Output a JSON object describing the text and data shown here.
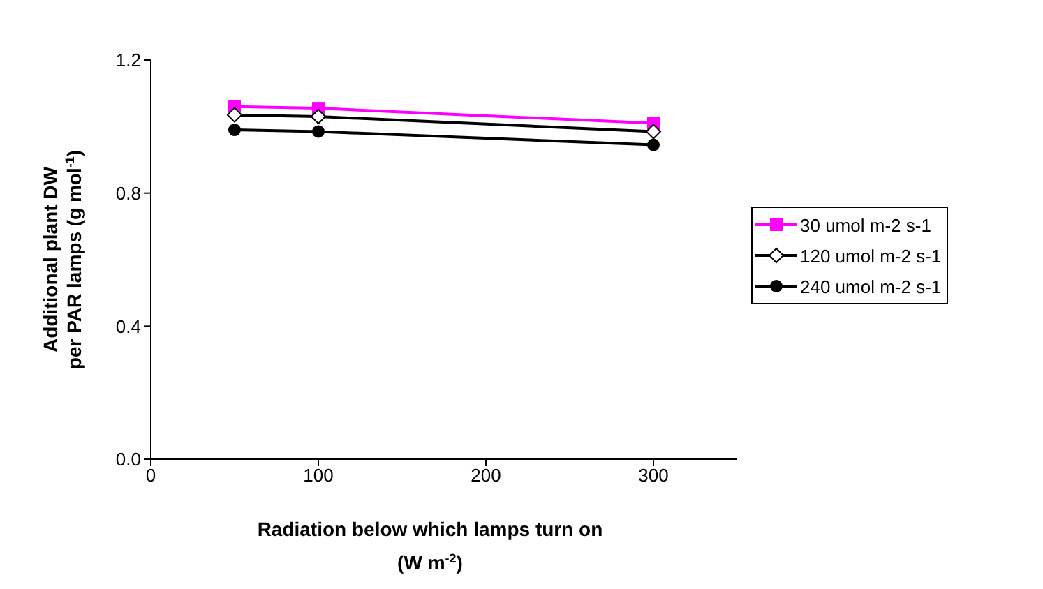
{
  "chart_data": {
    "type": "line",
    "xlabel": "Radiation below which lamps turn on (W m$^{-2}$)",
    "ylabel": "Additional plant DW per PAR lamps (g mol$^{-1}$)",
    "x": [
      50,
      100,
      300
    ],
    "series": [
      {
        "name": "30 umol m-2 s-1",
        "color": "#ff00ff",
        "marker": "square",
        "values": [
          1.06,
          1.055,
          1.01
        ]
      },
      {
        "name": "120 umol m-2 s-1",
        "color": "#000000",
        "marker": "diamond",
        "values": [
          1.035,
          1.03,
          0.985
        ]
      },
      {
        "name": "240 umol m-2 s-1",
        "color": "#000000",
        "marker": "circle",
        "values": [
          0.99,
          0.985,
          0.945
        ]
      }
    ],
    "xlim": [
      0,
      350
    ],
    "xticks": [
      0,
      100,
      200,
      300
    ],
    "ylim": [
      0,
      1.2
    ],
    "yticks": [
      {
        "value": 0,
        "label": "0.0"
      },
      {
        "value": 0.4,
        "label": "0.4"
      },
      {
        "value": 0.8,
        "label": "0.8"
      },
      {
        "value": 1.2,
        "label": "1.2"
      }
    ],
    "grid": false,
    "legend": "right",
    "line_style": "solid"
  }
}
